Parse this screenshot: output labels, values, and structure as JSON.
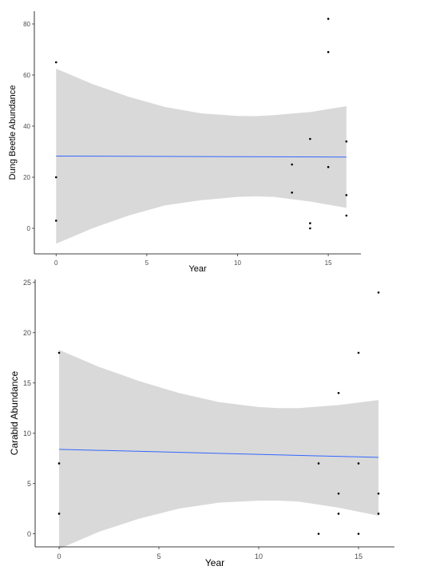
{
  "chart_data": [
    {
      "type": "scatter",
      "xlabel": "Year",
      "ylabel": "Dung Beetle Abundance",
      "xlim": [
        -1.2,
        16.8
      ],
      "ylim": [
        -10,
        85
      ],
      "xticks": [
        0,
        5,
        10,
        15
      ],
      "yticks": [
        0,
        20,
        40,
        60,
        80
      ],
      "points": [
        {
          "x": 0,
          "y": 65
        },
        {
          "x": 0,
          "y": 20
        },
        {
          "x": 0,
          "y": 3
        },
        {
          "x": 13,
          "y": 25
        },
        {
          "x": 13,
          "y": 14
        },
        {
          "x": 14,
          "y": 35
        },
        {
          "x": 14,
          "y": 2
        },
        {
          "x": 14,
          "y": 0
        },
        {
          "x": 15,
          "y": 82
        },
        {
          "x": 15,
          "y": 69
        },
        {
          "x": 15,
          "y": 24
        },
        {
          "x": 16,
          "y": 34
        },
        {
          "x": 16,
          "y": 13
        },
        {
          "x": 16,
          "y": 5
        }
      ],
      "fit_line": {
        "color": "#3366ff",
        "x": [
          0,
          16
        ],
        "y": [
          28.3,
          27.9
        ]
      },
      "confidence_band": {
        "color": "#d9d9d9",
        "x": [
          0,
          2,
          4,
          6,
          8,
          10,
          11,
          12,
          14,
          16
        ],
        "upper": [
          62.5,
          56.5,
          51.5,
          47.5,
          45,
          44,
          43.9,
          44.3,
          45.5,
          47.8
        ],
        "lower": [
          -6,
          0,
          5,
          9,
          11,
          12.3,
          12.5,
          12.3,
          10.5,
          8
        ]
      },
      "grid": false
    },
    {
      "type": "scatter",
      "xlabel": "Year",
      "ylabel": "Carabid Abundance",
      "xlim": [
        -1.2,
        16.8
      ],
      "ylim": [
        -1.3,
        25.3
      ],
      "xticks": [
        0,
        5,
        10,
        15
      ],
      "yticks": [
        0,
        5,
        10,
        15,
        20,
        25
      ],
      "points": [
        {
          "x": 0,
          "y": 18
        },
        {
          "x": 0,
          "y": 7
        },
        {
          "x": 0,
          "y": 2
        },
        {
          "x": 13,
          "y": 7
        },
        {
          "x": 13,
          "y": 0
        },
        {
          "x": 14,
          "y": 14
        },
        {
          "x": 14,
          "y": 4
        },
        {
          "x": 14,
          "y": 2
        },
        {
          "x": 15,
          "y": 18
        },
        {
          "x": 15,
          "y": 7
        },
        {
          "x": 15,
          "y": 0
        },
        {
          "x": 16,
          "y": 24
        },
        {
          "x": 16,
          "y": 4
        },
        {
          "x": 16,
          "y": 2
        }
      ],
      "fit_line": {
        "color": "#3366ff",
        "x": [
          0,
          16
        ],
        "y": [
          8.4,
          7.6
        ]
      },
      "confidence_band": {
        "color": "#d9d9d9",
        "x": [
          0,
          2,
          4,
          6,
          8,
          10,
          11,
          12,
          14,
          16
        ],
        "upper": [
          18.3,
          16.6,
          15.2,
          14,
          13.1,
          12.6,
          12.5,
          12.5,
          12.8,
          13.3
        ],
        "lower": [
          -1.5,
          0.2,
          1.5,
          2.5,
          3.1,
          3.3,
          3.3,
          3.2,
          2.6,
          1.8
        ]
      },
      "grid": false
    }
  ]
}
